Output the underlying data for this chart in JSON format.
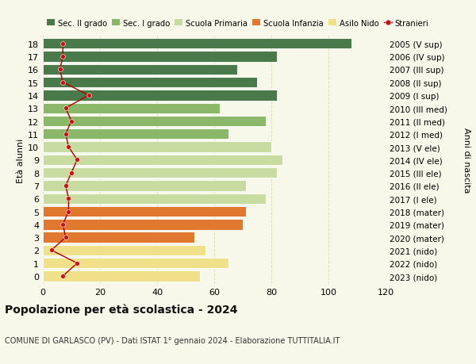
{
  "ages": [
    0,
    1,
    2,
    3,
    4,
    5,
    6,
    7,
    8,
    9,
    10,
    11,
    12,
    13,
    14,
    15,
    16,
    17,
    18
  ],
  "years": [
    "2023 (nido)",
    "2022 (nido)",
    "2021 (nido)",
    "2020 (mater)",
    "2019 (mater)",
    "2018 (mater)",
    "2017 (I ele)",
    "2016 (II ele)",
    "2015 (III ele)",
    "2014 (IV ele)",
    "2013 (V ele)",
    "2012 (I med)",
    "2011 (II med)",
    "2010 (III med)",
    "2009 (I sup)",
    "2008 (II sup)",
    "2007 (III sup)",
    "2006 (IV sup)",
    "2005 (V sup)"
  ],
  "bar_values": [
    55,
    65,
    57,
    53,
    70,
    71,
    78,
    71,
    82,
    84,
    80,
    65,
    78,
    62,
    82,
    75,
    68,
    82,
    108
  ],
  "bar_colors": [
    "#f0e08a",
    "#f0e08a",
    "#f0e08a",
    "#e07830",
    "#e07830",
    "#e07830",
    "#c8dba0",
    "#c8dba0",
    "#c8dba0",
    "#c8dba0",
    "#c8dba0",
    "#8ab868",
    "#8ab868",
    "#8ab868",
    "#4a7a4a",
    "#4a7a4a",
    "#4a7a4a",
    "#4a7a4a",
    "#4a7a4a"
  ],
  "stranieri_values": [
    7,
    12,
    3,
    8,
    7,
    9,
    9,
    8,
    10,
    12,
    9,
    8,
    10,
    8,
    16,
    7,
    6,
    7,
    7
  ],
  "legend_labels": [
    "Sec. II grado",
    "Sec. I grado",
    "Scuola Primaria",
    "Scuola Infanzia",
    "Asilo Nido",
    "Stranieri"
  ],
  "legend_colors": [
    "#4a7a4a",
    "#8ab868",
    "#c8dba0",
    "#e07830",
    "#f0e08a",
    "#cc1111"
  ],
  "title": "Popolazione per età scolastica - 2024",
  "subtitle": "COMUNE DI GARLASCO (PV) - Dati ISTAT 1° gennaio 2024 - Elaborazione TUTTITALIA.IT",
  "ylabel_left": "Età alunni",
  "ylabel_right": "Anni di nascita",
  "xlim": [
    0,
    120
  ],
  "xticks": [
    0,
    20,
    40,
    60,
    80,
    100,
    120
  ],
  "background_color": "#f8f8ea",
  "grid_color": "#ddddbb",
  "bar_height": 0.82,
  "stranieri_color": "#cc1111",
  "stranieri_line_color": "#aa0000"
}
